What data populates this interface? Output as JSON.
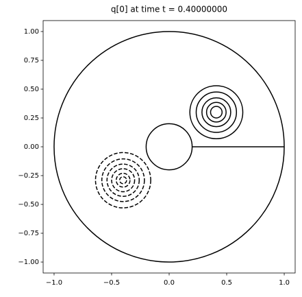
{
  "chart_data": {
    "type": "contour",
    "title": "q[0] at time t =     0.40000000",
    "xlim": [
      -1.095,
      1.095
    ],
    "ylim": [
      -1.095,
      1.095
    ],
    "xticks": [
      {
        "value": -1,
        "label": "−1.0"
      },
      {
        "value": -0.5,
        "label": "−0.5"
      },
      {
        "value": 0,
        "label": "0.0"
      },
      {
        "value": 0.5,
        "label": "0.5"
      },
      {
        "value": 1,
        "label": "1.0"
      }
    ],
    "yticks": [
      {
        "value": -1,
        "label": "−1.00"
      },
      {
        "value": -0.75,
        "label": "−0.75"
      },
      {
        "value": -0.5,
        "label": "−0.50"
      },
      {
        "value": -0.25,
        "label": "−0.25"
      },
      {
        "value": 0,
        "label": "0.00"
      },
      {
        "value": 0.25,
        "label": "0.25"
      },
      {
        "value": 0.5,
        "label": "0.50"
      },
      {
        "value": 0.75,
        "label": "0.75"
      },
      {
        "value": 1,
        "label": "1.00"
      }
    ],
    "boundary": {
      "outer_radius": 1,
      "inner_radius": 0.2,
      "cut": [
        0.2,
        1
      ]
    },
    "color": "#000000",
    "contours": [
      {
        "center": [
          0.41,
          0.3
        ],
        "radii": [
          0.23,
          0.175,
          0.125,
          0.085,
          0.05
        ],
        "style": "solid"
      },
      {
        "center": [
          -0.4,
          -0.29
        ],
        "radii": [
          0.24,
          0.185,
          0.14,
          0.1,
          0.06,
          0.03
        ],
        "style": "dashed"
      }
    ]
  }
}
